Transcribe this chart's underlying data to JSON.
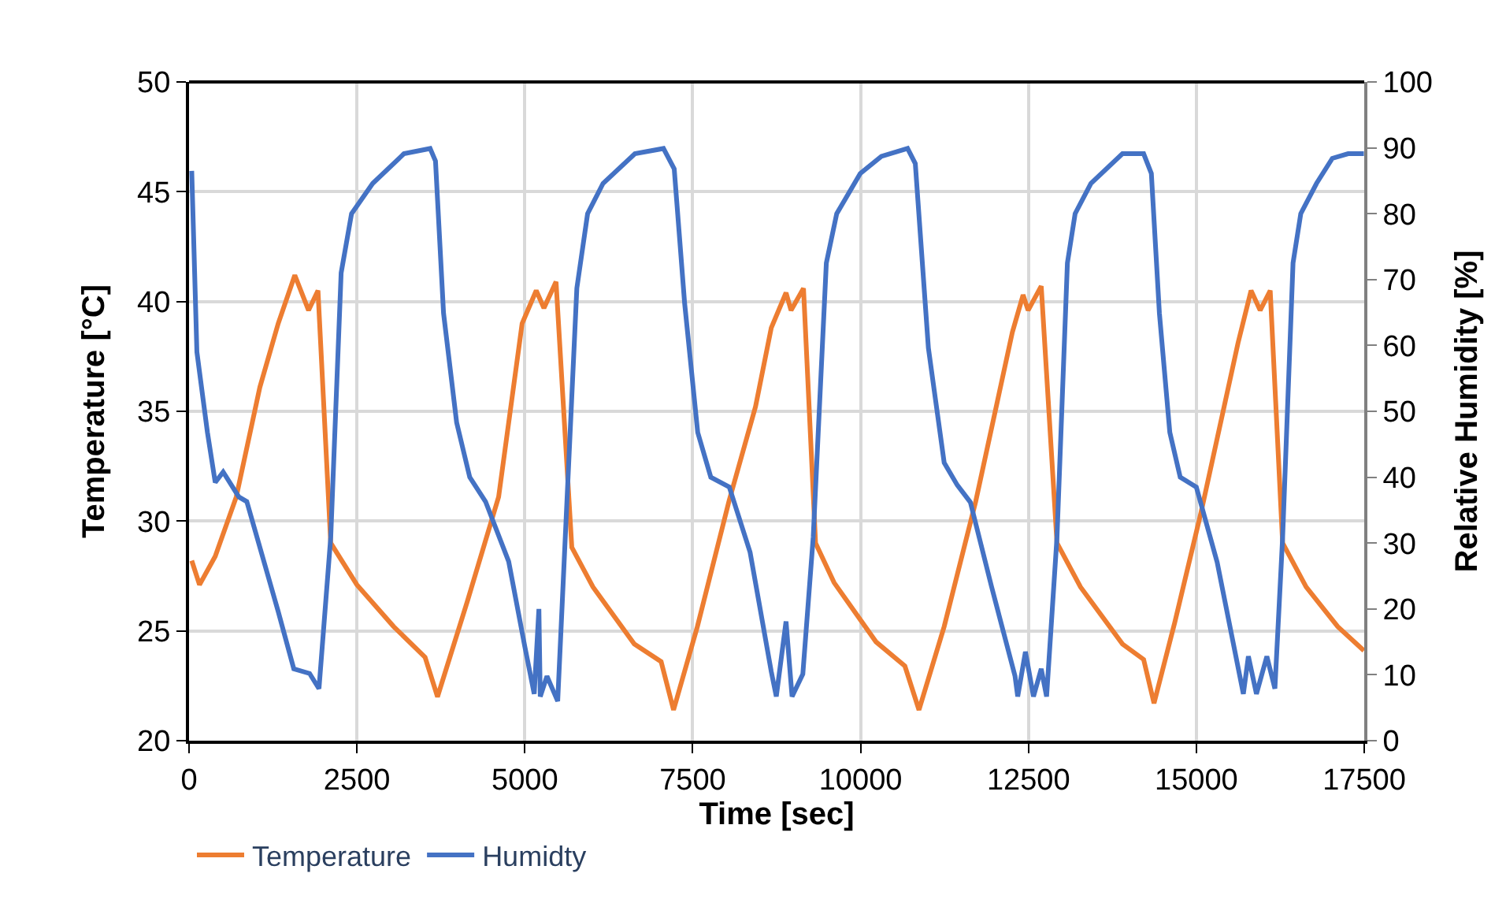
{
  "chart_data": {
    "type": "line",
    "xlabel": "Time [sec]",
    "ylabel": "Temperature [°C]",
    "y2label": "Relative Humidity [%]",
    "xlim": [
      0,
      17500
    ],
    "xticks": [
      0,
      2500,
      5000,
      7500,
      10000,
      12500,
      15000,
      17500
    ],
    "ylim": [
      20,
      50
    ],
    "yticks": [
      20,
      25,
      30,
      35,
      40,
      45,
      50
    ],
    "y2lim": [
      0,
      100
    ],
    "y2ticks": [
      0,
      10,
      20,
      30,
      40,
      50,
      60,
      70,
      80,
      90,
      100
    ],
    "grid": true,
    "legend": "bottom left",
    "line_style": "solid",
    "series": [
      {
        "name": "Temperature",
        "color": "#ed7d31",
        "x": [
          40,
          156,
          390,
          703,
          1055,
          1328,
          1575,
          1780,
          1920,
          2110,
          2500,
          3046,
          3515,
          3700,
          4140,
          4610,
          4960,
          5170,
          5285,
          5465,
          5700,
          6015,
          6630,
          7030,
          7215,
          7570,
          8040,
          8435,
          8670,
          8890,
          8965,
          9150,
          9330,
          9605,
          10230,
          10660,
          10870,
          11245,
          11715,
          12260,
          12420,
          12495,
          12690,
          12925,
          13275,
          13900,
          14215,
          14370,
          14680,
          15070,
          15620,
          15815,
          15950,
          16100,
          16285,
          16635,
          17105,
          17495
        ],
        "values": [
          28.2,
          27.1,
          28.4,
          31.1,
          36.1,
          39.0,
          41.2,
          39.6,
          40.5,
          29.0,
          27.1,
          25.2,
          23.8,
          22.0,
          26.3,
          31.1,
          39.0,
          40.5,
          39.7,
          40.9,
          28.8,
          27.0,
          24.4,
          23.6,
          21.4,
          25.2,
          30.9,
          35.2,
          38.8,
          40.4,
          39.6,
          40.6,
          29.0,
          27.2,
          24.5,
          23.4,
          21.4,
          25.2,
          30.9,
          38.6,
          40.3,
          39.6,
          40.7,
          29.0,
          27.0,
          24.4,
          23.7,
          21.7,
          25.4,
          30.4,
          38.1,
          40.5,
          39.6,
          40.5,
          29.0,
          27.0,
          25.2,
          24.1
        ]
      },
      {
        "name": "Humidty",
        "color": "#4472c4",
        "axis": "y2",
        "x": [
          40,
          117,
          274,
          390,
          508,
          742,
          860,
          1328,
          1560,
          1795,
          1935,
          2110,
          2265,
          2420,
          2735,
          3200,
          3590,
          3670,
          3790,
          3985,
          4180,
          4415,
          4760,
          5000,
          5140,
          5210,
          5230,
          5330,
          5490,
          5620,
          5775,
          5935,
          6165,
          6640,
          7065,
          7225,
          7380,
          7575,
          7770,
          8045,
          8355,
          8670,
          8745,
          8890,
          8980,
          9140,
          9295,
          9490,
          9645,
          9995,
          10310,
          10700,
          10815,
          11010,
          11245,
          11440,
          11635,
          11950,
          12300,
          12340,
          12455,
          12575,
          12690,
          12770,
          12925,
          13080,
          13195,
          13430,
          13900,
          14215,
          14330,
          14450,
          14605,
          14760,
          15000,
          15310,
          15700,
          15775,
          15895,
          16050,
          16170,
          16285,
          16440,
          16555,
          16790,
          17025,
          17260,
          17495
        ],
        "values": [
          86.5,
          59,
          46.8,
          39.2,
          40.8,
          37.0,
          36.3,
          19.6,
          10.9,
          10.2,
          7.9,
          30.9,
          71,
          80,
          84.6,
          89.1,
          89.9,
          88,
          64.9,
          48.3,
          40,
          36.3,
          27.2,
          14.3,
          7.1,
          20,
          6.7,
          9.8,
          6,
          34.7,
          68.7,
          80,
          84.6,
          89.1,
          89.9,
          86.8,
          66.4,
          46.8,
          40,
          38.5,
          28.6,
          10.5,
          6.7,
          18.1,
          6.7,
          10.1,
          30.9,
          72.5,
          80,
          86.1,
          88.7,
          89.9,
          87.6,
          59.6,
          42.2,
          38.8,
          36.2,
          23.4,
          9.8,
          6.7,
          13.5,
          6.7,
          10.9,
          6.7,
          30.9,
          72.5,
          80,
          84.6,
          89.1,
          89.1,
          86.1,
          64.9,
          46.8,
          40,
          38.5,
          27.1,
          7.1,
          12.8,
          7.1,
          12.8,
          7.9,
          30.9,
          72.5,
          80,
          84.6,
          88.4,
          89.1,
          89.1
        ]
      }
    ]
  }
}
